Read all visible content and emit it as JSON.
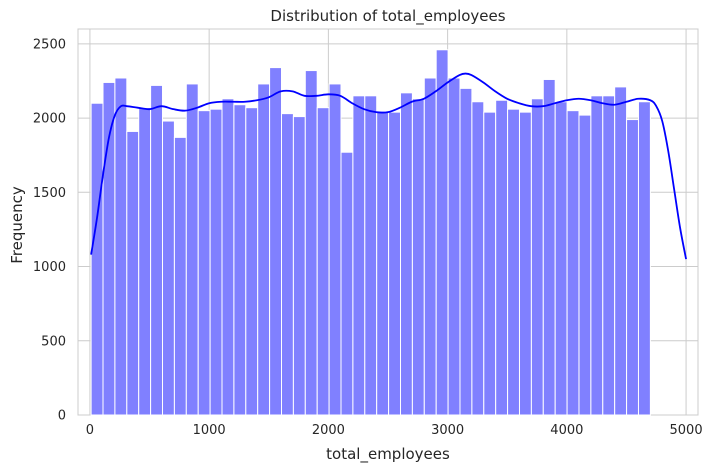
{
  "chart_data": {
    "type": "bar",
    "subtype": "histogram-with-kde",
    "title": "Distribution of total_employees",
    "xlabel": "total_employees",
    "ylabel": "Frequency",
    "xlim": [
      -100,
      5100
    ],
    "ylim": [
      0,
      2600
    ],
    "xticks": [
      0,
      1000,
      2000,
      3000,
      4000,
      5000
    ],
    "yticks": [
      0,
      500,
      1000,
      1500,
      2000,
      2500
    ],
    "grid": true,
    "bin_start": 10,
    "bin_width": 99.8,
    "bar_color": "#8080ff",
    "bar_edge_color": "#ffffff",
    "kde_color": "#0000ff",
    "values": [
      2100,
      2240,
      2270,
      1910,
      2070,
      2220,
      1980,
      1870,
      2230,
      2050,
      2060,
      2130,
      2090,
      2070,
      2230,
      2340,
      2030,
      2010,
      2320,
      2070,
      2230,
      1770,
      2150,
      2150,
      2040,
      2040,
      2170,
      2130,
      2270,
      2460,
      2270,
      2200,
      2110,
      2040,
      2120,
      2060,
      2040,
      2130,
      2260,
      2110,
      2050,
      2020,
      2150,
      2150,
      2210,
      1990,
      2110
    ],
    "kde": {
      "x": [
        10,
        60,
        110,
        160,
        210,
        260,
        310,
        400,
        500,
        600,
        700,
        800,
        900,
        1000,
        1100,
        1200,
        1300,
        1400,
        1500,
        1600,
        1700,
        1800,
        1900,
        2000,
        2100,
        2200,
        2300,
        2400,
        2500,
        2600,
        2700,
        2800,
        2900,
        3000,
        3100,
        3150,
        3200,
        3300,
        3400,
        3500,
        3600,
        3700,
        3800,
        3900,
        4000,
        4100,
        4200,
        4300,
        4400,
        4500,
        4600,
        4700,
        4750,
        4800,
        4850,
        4900,
        4950,
        5000
      ],
      "y": [
        1080,
        1330,
        1620,
        1870,
        2020,
        2080,
        2080,
        2070,
        2060,
        2080,
        2060,
        2050,
        2070,
        2100,
        2110,
        2110,
        2110,
        2120,
        2140,
        2180,
        2180,
        2150,
        2150,
        2160,
        2150,
        2100,
        2060,
        2040,
        2040,
        2070,
        2110,
        2130,
        2180,
        2240,
        2290,
        2300,
        2290,
        2240,
        2180,
        2130,
        2100,
        2080,
        2080,
        2100,
        2120,
        2130,
        2120,
        2100,
        2090,
        2110,
        2130,
        2120,
        2080,
        1980,
        1780,
        1520,
        1260,
        1050
      ]
    }
  }
}
